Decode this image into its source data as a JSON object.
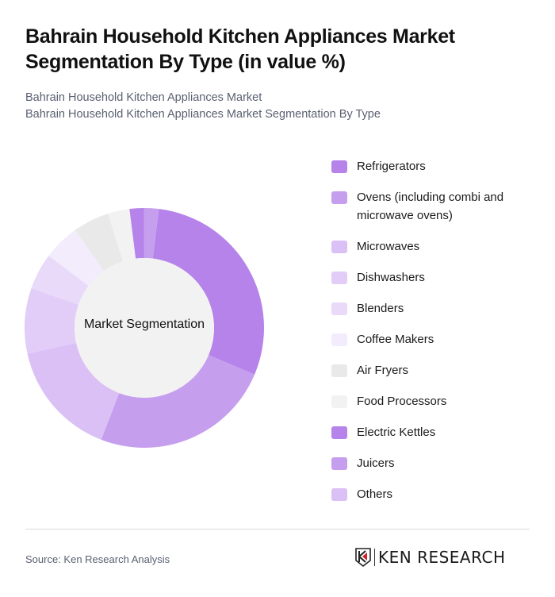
{
  "header": {
    "title": "Bahrain Household Kitchen Appliances Market Segmentation By Type (in value %)",
    "subtitle_line1": "Bahrain Household Kitchen Appliances Market",
    "subtitle_line2": "Bahrain Household Kitchen Appliances Market Segmentation By Type"
  },
  "chart": {
    "center_label": "Market Segmentation"
  },
  "legend": [
    {
      "label": "Refrigerators",
      "color": "#b583ea"
    },
    {
      "label": "Ovens (including combi and microwave ovens)",
      "color": "#c69eee"
    },
    {
      "label": "Microwaves",
      "color": "#dbc0f6"
    },
    {
      "label": "Dishwashers",
      "color": "#e1cdf7"
    },
    {
      "label": "Blenders",
      "color": "#e9dafa"
    },
    {
      "label": "Coffee Makers",
      "color": "#f2ecfc"
    },
    {
      "label": "Air Fryers",
      "color": "#e9e9e9"
    },
    {
      "label": "Food Processors",
      "color": "#f2f2f2"
    },
    {
      "label": "Electric Kettles",
      "color": "#b583ea"
    },
    {
      "label": "Juicers",
      "color": "#c69eee"
    },
    {
      "label": "Others",
      "color": "#dbc0f6"
    }
  ],
  "footer": {
    "source": "Source: Ken Research Analysis",
    "logo_text": "KEN RESEARCH"
  },
  "chart_data": {
    "type": "pie",
    "variant": "donut",
    "title": "Bahrain Household Kitchen Appliances Market Segmentation By Type (in value %)",
    "center_label": "Market Segmentation",
    "categories": [
      "Refrigerators",
      "Ovens (including combi and microwave ovens)",
      "Microwaves",
      "Dishwashers",
      "Blenders",
      "Coffee Makers",
      "Air Fryers",
      "Food Processors",
      "Electric Kettles",
      "Juicers",
      "Others"
    ],
    "values": [
      30,
      25,
      16,
      9,
      5,
      5,
      5,
      3,
      2,
      2,
      0
    ],
    "colors": [
      "#b583ea",
      "#c69eee",
      "#dbc0f6",
      "#e1cdf7",
      "#e9dafa",
      "#f2ecfc",
      "#e9e9e9",
      "#f2f2f2",
      "#b583ea",
      "#c69eee",
      "#dbc0f6"
    ],
    "start_angle_deg": 7,
    "legend_position": "right",
    "unit": "value %"
  }
}
